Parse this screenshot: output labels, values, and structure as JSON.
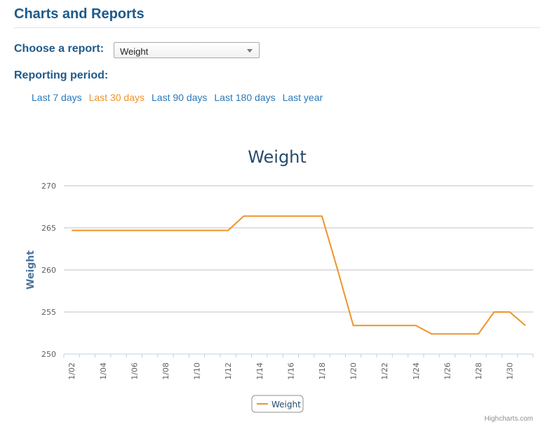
{
  "header": {
    "title": "Charts and Reports"
  },
  "report": {
    "label": "Choose a report:",
    "selected": "Weight"
  },
  "period": {
    "label": "Reporting period:",
    "links": [
      {
        "label": "Last 7 days",
        "active": false
      },
      {
        "label": "Last 30 days",
        "active": true
      },
      {
        "label": "Last 90 days",
        "active": false
      },
      {
        "label": "Last 180 days",
        "active": false
      },
      {
        "label": "Last year",
        "active": false
      }
    ]
  },
  "colors": {
    "accent": "#f0922a",
    "link": "#2b78b8",
    "title": "#1e5a8c"
  },
  "chart_data": {
    "type": "line",
    "title": "Weight",
    "xlabel": "",
    "ylabel": "Weight",
    "ylim": [
      250,
      270
    ],
    "yticks": [
      250,
      255,
      260,
      265,
      270
    ],
    "grid": true,
    "legend_position": "bottom-center",
    "categories": [
      "1/02",
      "1/03",
      "1/04",
      "1/05",
      "1/06",
      "1/07",
      "1/08",
      "1/09",
      "1/10",
      "1/11",
      "1/12",
      "1/13",
      "1/14",
      "1/15",
      "1/16",
      "1/17",
      "1/18",
      "1/19",
      "1/20",
      "1/21",
      "1/22",
      "1/23",
      "1/24",
      "1/25",
      "1/26",
      "1/27",
      "1/28",
      "1/29",
      "1/30",
      "1/31"
    ],
    "tick_labels": [
      "1/02",
      "1/04",
      "1/06",
      "1/08",
      "1/10",
      "1/12",
      "1/14",
      "1/16",
      "1/18",
      "1/20",
      "1/22",
      "1/24",
      "1/26",
      "1/28",
      "1/30"
    ],
    "series": [
      {
        "name": "Weight",
        "color": "#f0922a",
        "values": [
          264.7,
          264.7,
          264.7,
          264.7,
          264.7,
          264.7,
          264.7,
          264.7,
          264.7,
          264.7,
          264.7,
          266.4,
          266.4,
          266.4,
          266.4,
          266.4,
          266.4,
          260.0,
          253.4,
          253.4,
          253.4,
          253.4,
          253.4,
          252.4,
          252.4,
          252.4,
          252.4,
          255.0,
          255.0,
          253.4
        ]
      }
    ],
    "credit": "Highcharts.com"
  }
}
